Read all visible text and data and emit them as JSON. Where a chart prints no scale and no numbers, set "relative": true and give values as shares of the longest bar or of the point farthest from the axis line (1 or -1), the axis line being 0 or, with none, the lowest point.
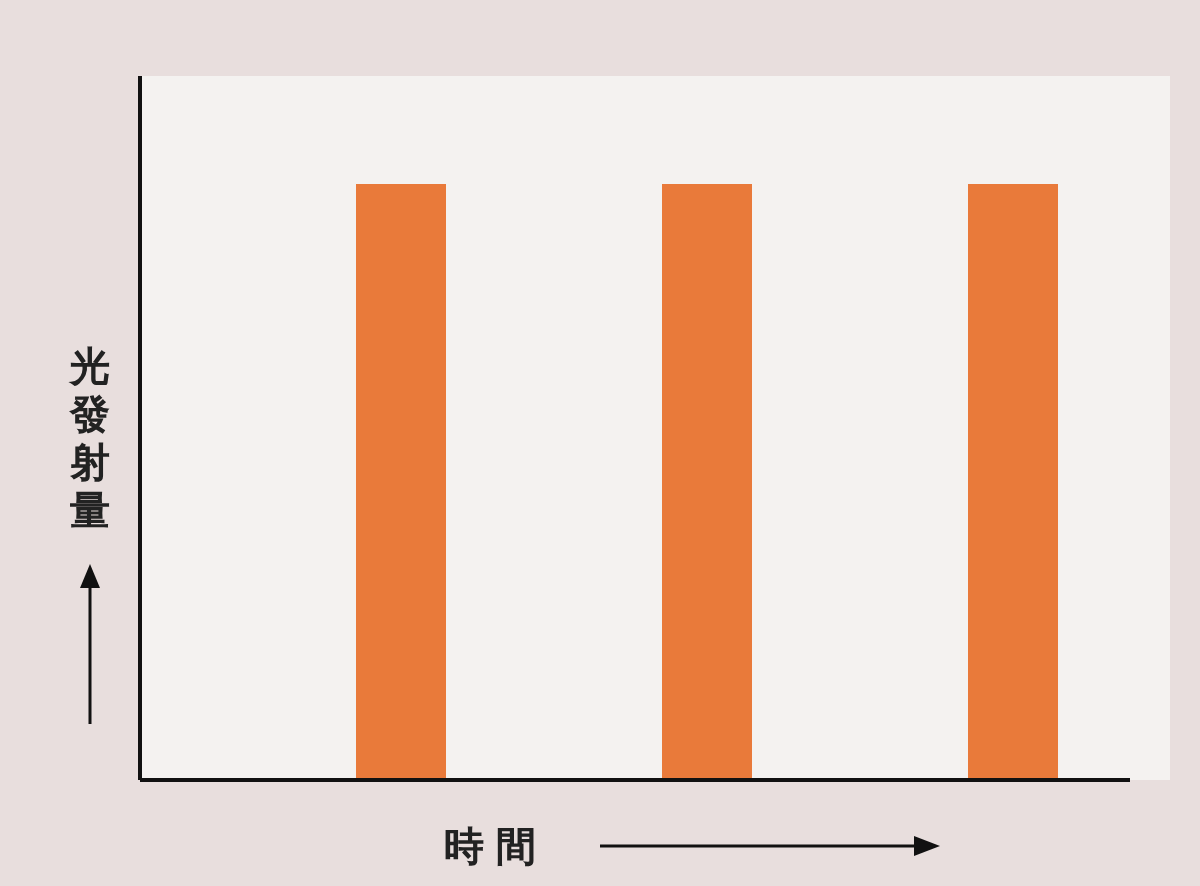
{
  "chart_data": {
    "type": "bar",
    "relative": true,
    "categories": [
      null,
      null,
      null
    ],
    "values": [
      1,
      1,
      1
    ],
    "color": "#e97a3a",
    "xlabel": "時間",
    "ylabel": "光發射量"
  }
}
